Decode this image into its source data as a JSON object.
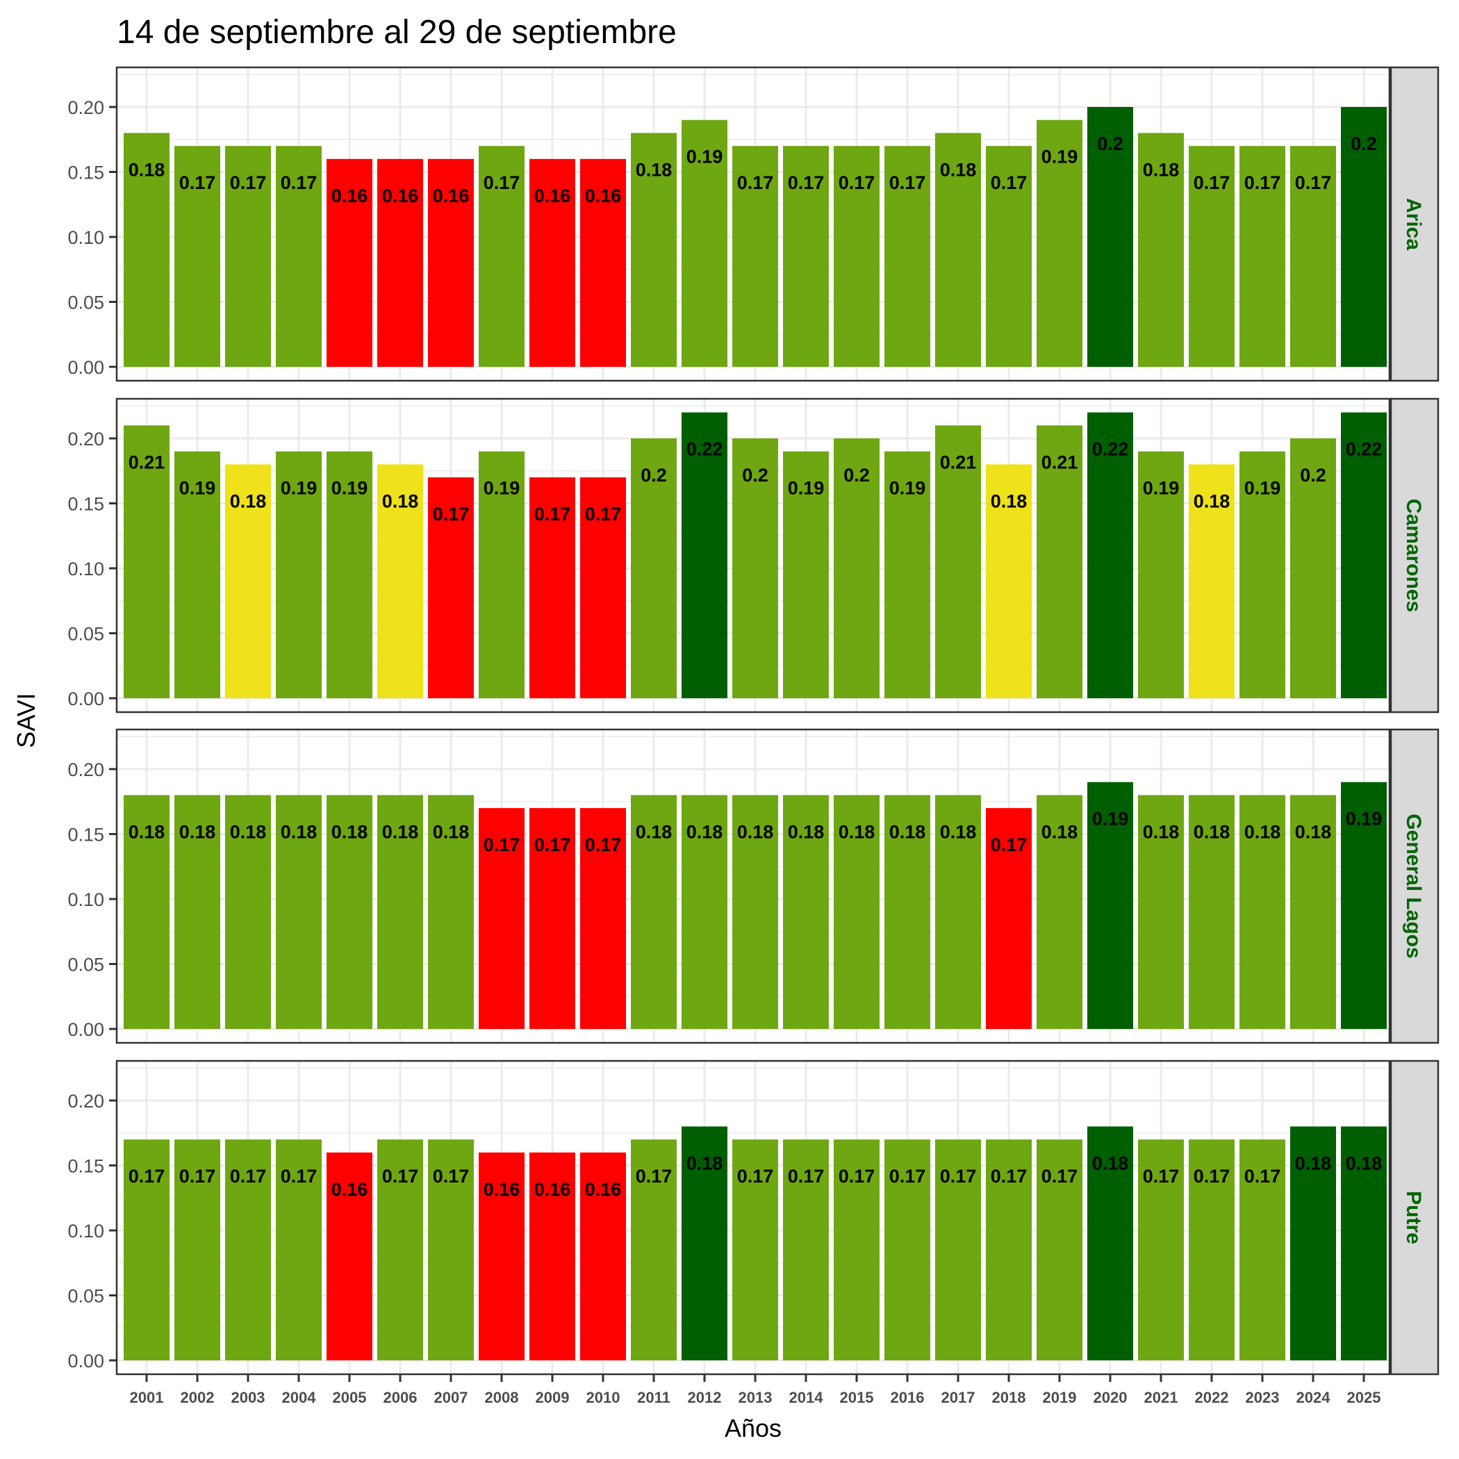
{
  "chart_data": {
    "type": "bar",
    "title": "14 de septiembre al 29 de septiembre",
    "xlabel": "Años",
    "ylabel": "SAVI",
    "ylim": [
      0,
      0.23
    ],
    "yticks": [
      "0.00",
      "0.05",
      "0.10",
      "0.15",
      "0.20"
    ],
    "ytick_values": [
      0,
      0.05,
      0.1,
      0.15,
      0.2
    ],
    "grid": true,
    "facet_layout": "rows",
    "strip_position": "right",
    "categories": [
      "2001",
      "2002",
      "2003",
      "2004",
      "2005",
      "2006",
      "2007",
      "2008",
      "2009",
      "2010",
      "2011",
      "2012",
      "2013",
      "2014",
      "2015",
      "2016",
      "2017",
      "2018",
      "2019",
      "2020",
      "2021",
      "2022",
      "2023",
      "2024",
      "2025"
    ],
    "colors": {
      "red": "#FF0000",
      "yellow": "#EFE11A",
      "light_green": "#6EA711",
      "dark_green": "#005F00",
      "strip_text": "#006400",
      "strip_bg": "#D9D9D9"
    },
    "panels": [
      {
        "name": "Arica",
        "values": [
          0.18,
          0.17,
          0.17,
          0.17,
          0.16,
          0.16,
          0.16,
          0.17,
          0.16,
          0.16,
          0.18,
          0.19,
          0.17,
          0.17,
          0.17,
          0.17,
          0.18,
          0.17,
          0.19,
          0.2,
          0.18,
          0.17,
          0.17,
          0.17,
          0.2
        ],
        "labels": [
          "0.18",
          "0.17",
          "0.17",
          "0.17",
          "0.16",
          "0.16",
          "0.16",
          "0.17",
          "0.16",
          "0.16",
          "0.18",
          "0.19",
          "0.17",
          "0.17",
          "0.17",
          "0.17",
          "0.18",
          "0.17",
          "0.19",
          "0.2",
          "0.18",
          "0.17",
          "0.17",
          "0.17",
          "0.2"
        ],
        "color_classes": [
          "light_green",
          "light_green",
          "light_green",
          "light_green",
          "red",
          "red",
          "red",
          "light_green",
          "red",
          "red",
          "light_green",
          "light_green",
          "light_green",
          "light_green",
          "light_green",
          "light_green",
          "light_green",
          "light_green",
          "light_green",
          "dark_green",
          "light_green",
          "light_green",
          "light_green",
          "light_green",
          "dark_green"
        ]
      },
      {
        "name": "Camarones",
        "values": [
          0.21,
          0.19,
          0.18,
          0.19,
          0.19,
          0.18,
          0.17,
          0.19,
          0.17,
          0.17,
          0.2,
          0.22,
          0.2,
          0.19,
          0.2,
          0.19,
          0.21,
          0.18,
          0.21,
          0.22,
          0.19,
          0.18,
          0.19,
          0.2,
          0.22
        ],
        "labels": [
          "0.21",
          "0.19",
          "0.18",
          "0.19",
          "0.19",
          "0.18",
          "0.17",
          "0.19",
          "0.17",
          "0.17",
          "0.2",
          "0.22",
          "0.2",
          "0.19",
          "0.2",
          "0.19",
          "0.21",
          "0.18",
          "0.21",
          "0.22",
          "0.19",
          "0.18",
          "0.19",
          "0.2",
          "0.22"
        ],
        "color_classes": [
          "light_green",
          "light_green",
          "yellow",
          "light_green",
          "light_green",
          "yellow",
          "red",
          "light_green",
          "red",
          "red",
          "light_green",
          "dark_green",
          "light_green",
          "light_green",
          "light_green",
          "light_green",
          "light_green",
          "yellow",
          "light_green",
          "dark_green",
          "light_green",
          "yellow",
          "light_green",
          "light_green",
          "dark_green"
        ]
      },
      {
        "name": "General Lagos",
        "values": [
          0.18,
          0.18,
          0.18,
          0.18,
          0.18,
          0.18,
          0.18,
          0.17,
          0.17,
          0.17,
          0.18,
          0.18,
          0.18,
          0.18,
          0.18,
          0.18,
          0.18,
          0.17,
          0.18,
          0.19,
          0.18,
          0.18,
          0.18,
          0.18,
          0.19
        ],
        "labels": [
          "0.18",
          "0.18",
          "0.18",
          "0.18",
          "0.18",
          "0.18",
          "0.18",
          "0.17",
          "0.17",
          "0.17",
          "0.18",
          "0.18",
          "0.18",
          "0.18",
          "0.18",
          "0.18",
          "0.18",
          "0.17",
          "0.18",
          "0.19",
          "0.18",
          "0.18",
          "0.18",
          "0.18",
          "0.19"
        ],
        "color_classes": [
          "light_green",
          "light_green",
          "light_green",
          "light_green",
          "light_green",
          "light_green",
          "light_green",
          "red",
          "red",
          "red",
          "light_green",
          "light_green",
          "light_green",
          "light_green",
          "light_green",
          "light_green",
          "light_green",
          "red",
          "light_green",
          "dark_green",
          "light_green",
          "light_green",
          "light_green",
          "light_green",
          "dark_green"
        ]
      },
      {
        "name": "Putre",
        "values": [
          0.17,
          0.17,
          0.17,
          0.17,
          0.16,
          0.17,
          0.17,
          0.16,
          0.16,
          0.16,
          0.17,
          0.18,
          0.17,
          0.17,
          0.17,
          0.17,
          0.17,
          0.17,
          0.17,
          0.18,
          0.17,
          0.17,
          0.17,
          0.18,
          0.18
        ],
        "labels": [
          "0.17",
          "0.17",
          "0.17",
          "0.17",
          "0.16",
          "0.17",
          "0.17",
          "0.16",
          "0.16",
          "0.16",
          "0.17",
          "0.18",
          "0.17",
          "0.17",
          "0.17",
          "0.17",
          "0.17",
          "0.17",
          "0.17",
          "0.18",
          "0.17",
          "0.17",
          "0.17",
          "0.18",
          "0.18"
        ],
        "color_classes": [
          "light_green",
          "light_green",
          "light_green",
          "light_green",
          "red",
          "light_green",
          "light_green",
          "red",
          "red",
          "red",
          "light_green",
          "dark_green",
          "light_green",
          "light_green",
          "light_green",
          "light_green",
          "light_green",
          "light_green",
          "light_green",
          "dark_green",
          "light_green",
          "light_green",
          "light_green",
          "dark_green",
          "dark_green"
        ]
      }
    ]
  }
}
